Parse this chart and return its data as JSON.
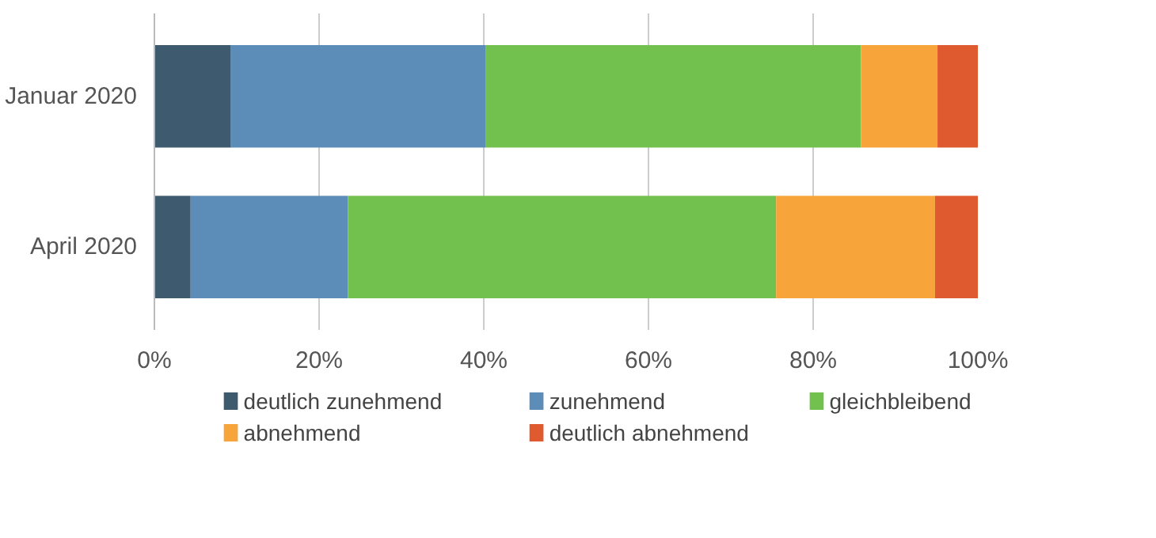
{
  "chart_data": {
    "type": "bar",
    "orientation": "horizontal",
    "stacked": true,
    "categories": [
      "Januar 2020",
      "April 2020"
    ],
    "series": [
      {
        "name": "deutlich zunehmend",
        "color": "#3e5a6e",
        "values": [
          9.3,
          4.4
        ]
      },
      {
        "name": "zunehmend",
        "color": "#5b8db8",
        "values": [
          30.9,
          19.1
        ]
      },
      {
        "name": "gleichbleibend",
        "color": "#72c04e",
        "values": [
          45.6,
          52.0
        ]
      },
      {
        "name": "abnehmend",
        "color": "#f7a43a",
        "values": [
          9.3,
          19.3
        ]
      },
      {
        "name": "deutlich abnehmend",
        "color": "#e05a30",
        "values": [
          4.9,
          5.2
        ]
      }
    ],
    "xlim": [
      0,
      100
    ],
    "xticks": [
      {
        "value": 0,
        "label": "0%"
      },
      {
        "value": 20,
        "label": "20%"
      },
      {
        "value": 40,
        "label": "40%"
      },
      {
        "value": 60,
        "label": "60%"
      },
      {
        "value": 80,
        "label": "80%"
      },
      {
        "value": 100,
        "label": "100%"
      }
    ],
    "grid": "x",
    "legend": "bottom"
  }
}
